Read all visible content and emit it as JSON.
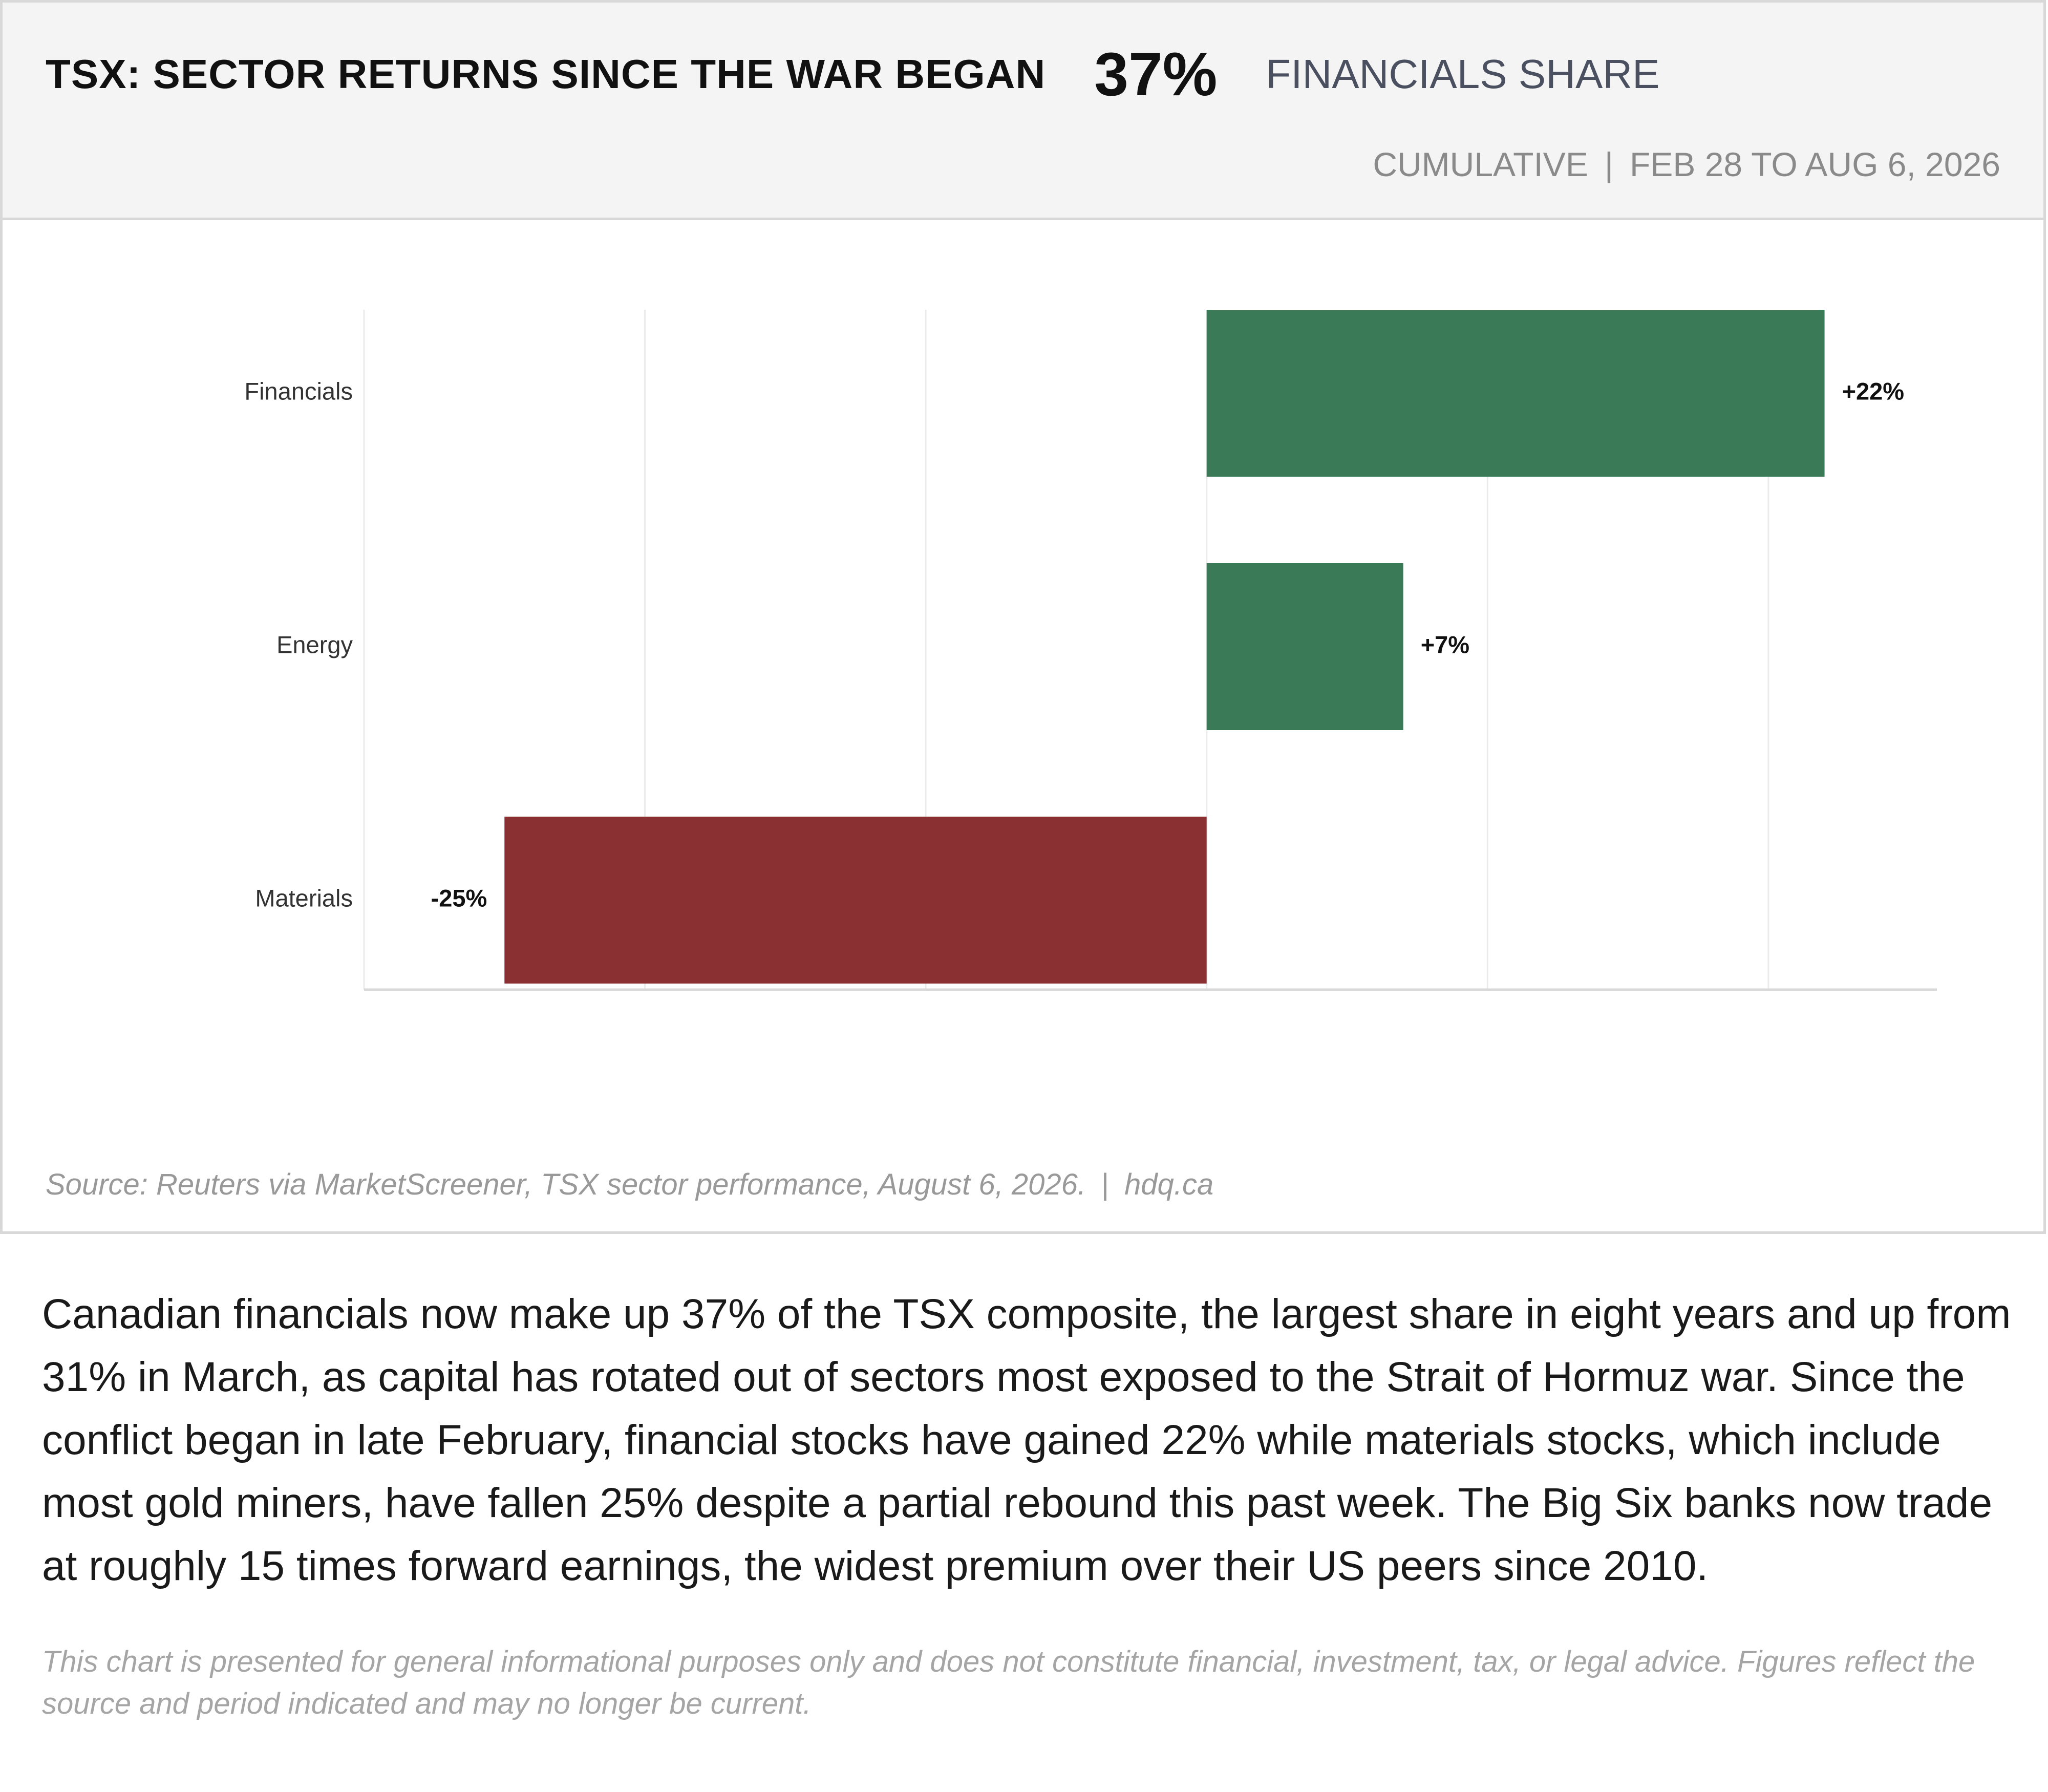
{
  "header": {
    "title": "TSX: SECTOR RETURNS SINCE THE WAR BEGAN",
    "kpi_value": "37%",
    "kpi_label": "FINANCIALS SHARE",
    "period_measure": "CUMULATIVE",
    "period_separator": "|",
    "period_range": "FEB 28 TO AUG 6, 2026"
  },
  "chart_data": {
    "type": "bar",
    "orientation": "horizontal",
    "categories": [
      "Financials",
      "Energy",
      "Materials"
    ],
    "values": [
      22,
      7,
      -25
    ],
    "value_labels": [
      "+22%",
      "+7%",
      "-25%"
    ],
    "unit": "%",
    "xlim": [
      -30,
      26
    ],
    "xlabel": "",
    "ylabel": "",
    "grid": true,
    "colors": {
      "positive": "#3b7a57",
      "negative": "#8b3032",
      "grid": "#ebebeb",
      "axis": "#d8d8d8"
    }
  },
  "source": {
    "text": "Source: Reuters via MarketScreener, TSX sector performance, August 6, 2026.",
    "separator": "|",
    "site": "hdq.ca"
  },
  "summary": "Canadian financials now make up 37% of the TSX composite, the largest share in eight years and up from 31% in March, as capital has rotated out of sectors most exposed to the Strait of Hormuz war. Since the conflict began in late February, financial stocks have gained 22% while materials stocks, which include most gold miners, have fallen 25% despite a partial rebound this past week. The Big Six banks now trade at roughly 15 times forward earnings, the widest premium over their US peers since 2010.",
  "disclaimer": "This chart is presented for general informational purposes only and does not constitute financial, investment, tax, or legal advice. Figures reflect the source and period indicated and may no longer be current."
}
